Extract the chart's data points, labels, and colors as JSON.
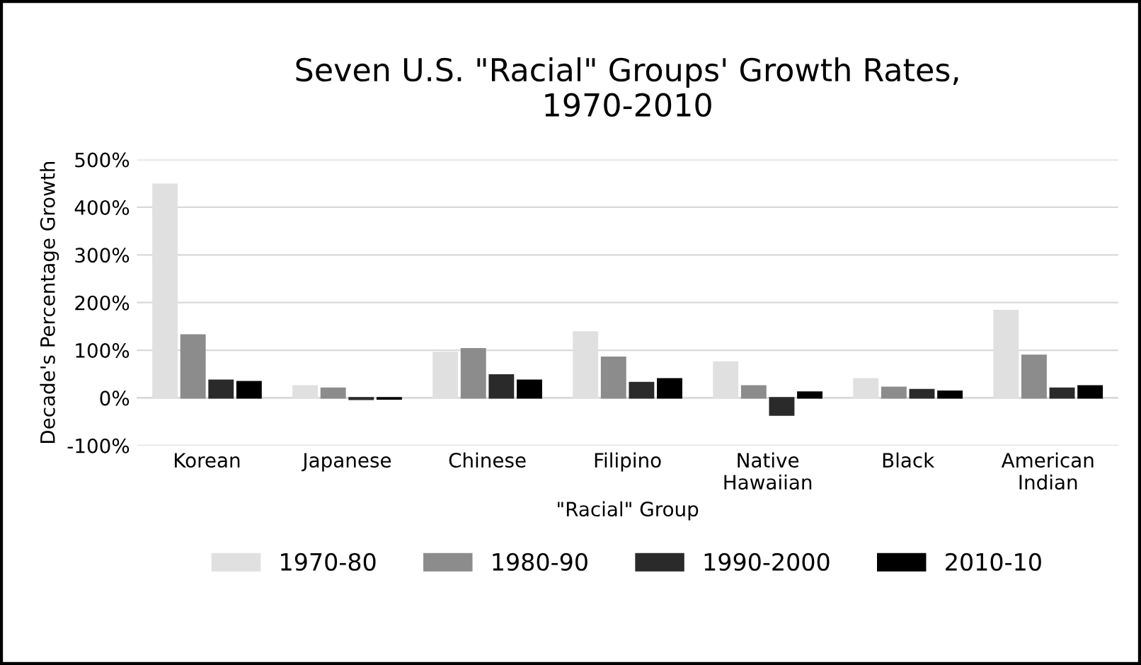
{
  "chart_data": {
    "type": "bar",
    "title": "Seven U.S. \"Racial\" Groups' Growth Rates,\n1970-2010",
    "xlabel": "\"Racial\" Group",
    "ylabel": "Decade's Percentage Growth",
    "categories": [
      "Korean",
      "Japanese",
      "Chinese",
      "Filipino",
      "Native\nHawaiian",
      "Black",
      "American\nIndian"
    ],
    "series": [
      {
        "name": "1970-80",
        "color": "#e0e0e0",
        "values": [
          448,
          25,
          95,
          138,
          75,
          40,
          183
        ]
      },
      {
        "name": "1980-90",
        "color": "#8c8c8c",
        "values": [
          132,
          20,
          103,
          85,
          25,
          22,
          89
        ]
      },
      {
        "name": "1990-2000",
        "color": "#2a2a2a",
        "values": [
          37,
          -3,
          48,
          32,
          -36,
          17,
          20
        ]
      },
      {
        "name": "2010-10",
        "color": "#000000",
        "values": [
          34,
          -2,
          37,
          40,
          12,
          14,
          25
        ]
      }
    ],
    "ylim": [
      -100,
      500
    ],
    "yticks": [
      {
        "value": -100,
        "label": "-100%"
      },
      {
        "value": 0,
        "label": "0%"
      },
      {
        "value": 100,
        "label": "100%"
      },
      {
        "value": 200,
        "label": "200%"
      },
      {
        "value": 300,
        "label": "300%"
      },
      {
        "value": 400,
        "label": "400%"
      },
      {
        "value": 500,
        "label": "500%"
      }
    ],
    "grid": "y",
    "legend": "bottom"
  }
}
